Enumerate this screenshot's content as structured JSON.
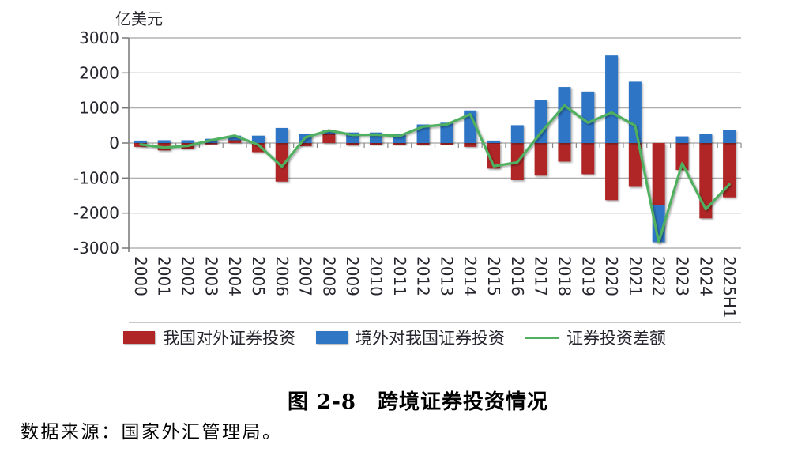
{
  "caption": "图 2-8　跨境证券投资情况",
  "source": "数据来源：国家外汇管理局。",
  "chart_data": {
    "type": "bar",
    "subtype": "stacked-bars-with-line",
    "title": "",
    "ylabel": "亿美元",
    "xlabel": "",
    "ylim": [
      -3000,
      3000
    ],
    "ytick_step": 1000,
    "yticks": [
      3000,
      2000,
      1000,
      0,
      -1000,
      -2000,
      -3000
    ],
    "grid": true,
    "legend_position": "bottom",
    "categories": [
      "2000",
      "2001",
      "2002",
      "2003",
      "2004",
      "2005",
      "2006",
      "2007",
      "2008",
      "2009",
      "2010",
      "2011",
      "2012",
      "2013",
      "2014",
      "2015",
      "2016",
      "2017",
      "2018",
      "2019",
      "2020",
      "2021",
      "2022",
      "2023",
      "2024",
      "2025H1"
    ],
    "series": [
      {
        "name": "我国对外证券投资",
        "type": "bar",
        "color": "#b02526",
        "values": [
          -110,
          -210,
          -160,
          -40,
          80,
          -260,
          -1100,
          -90,
          260,
          -70,
          -60,
          -60,
          -60,
          -50,
          -110,
          -730,
          -1060,
          -930,
          -530,
          -890,
          -1630,
          -1250,
          -1780,
          -770,
          -2150,
          -1550
        ]
      },
      {
        "name": "境外对我国证券投资",
        "type": "bar",
        "color": "#2f76c5",
        "values": [
          70,
          80,
          80,
          120,
          130,
          210,
          430,
          250,
          100,
          300,
          300,
          260,
          530,
          580,
          930,
          70,
          510,
          1230,
          1600,
          1470,
          2500,
          1750,
          -1050,
          190,
          260,
          370
        ]
      },
      {
        "name": "证券投资差额",
        "type": "line",
        "color": "#4fb05f",
        "values": [
          -40,
          -130,
          -80,
          80,
          210,
          -50,
          -670,
          160,
          360,
          230,
          240,
          200,
          470,
          530,
          820,
          -660,
          -550,
          300,
          1070,
          580,
          870,
          500,
          -2830,
          -580,
          -1890,
          -1180
        ]
      }
    ],
    "colors": {
      "gridline": "#a3a3a3",
      "axis": "#777777",
      "tick": "#888888",
      "text": "#26262e",
      "separator": "#c8c8c8"
    }
  }
}
